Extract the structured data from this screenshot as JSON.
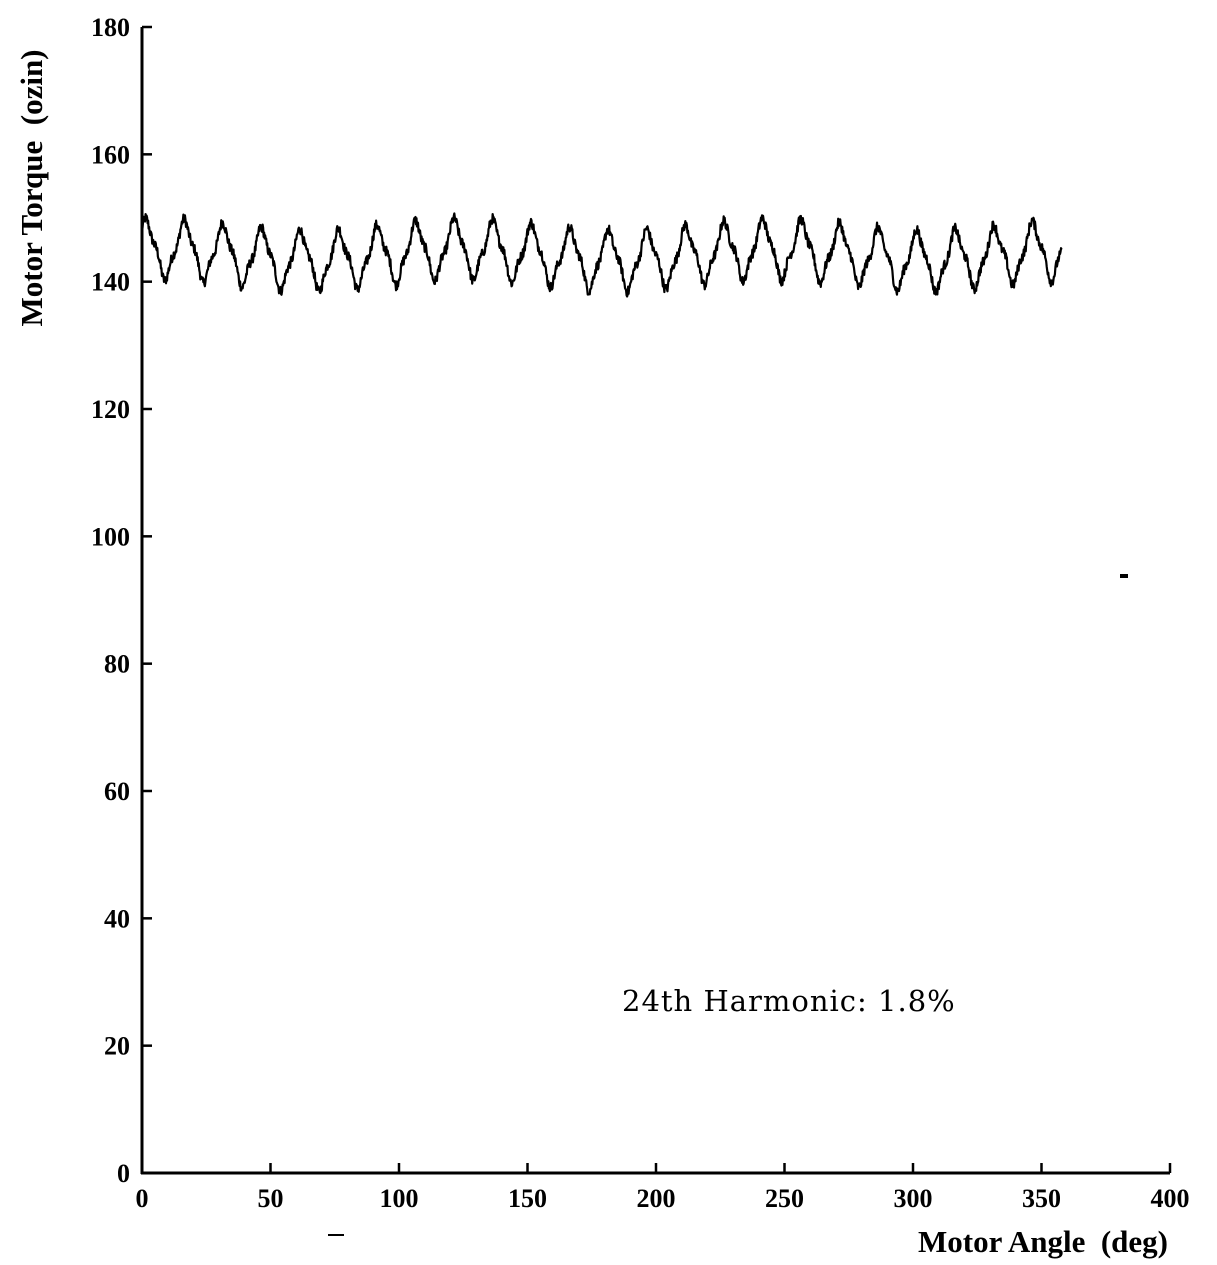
{
  "chart_data": {
    "type": "line",
    "title": "",
    "xlabel": "Motor Angle  (deg)",
    "ylabel": "Motor Torque  (ozin)",
    "xlim": [
      0,
      400
    ],
    "ylim": [
      0,
      180
    ],
    "xticks": [
      0,
      50,
      100,
      150,
      200,
      250,
      300,
      350,
      400
    ],
    "yticks": [
      0,
      20,
      40,
      60,
      80,
      100,
      120,
      140,
      160,
      180
    ],
    "grid": false,
    "annotation": "24th Harmonic: 1.8%",
    "series": [
      {
        "mean": 144.2,
        "x_start": 0,
        "x_end": 358,
        "harmonic_order": 24,
        "harmonic_amplitude_percent": 1.8,
        "x_sample": [
          0,
          7.5,
          15,
          22.5,
          30,
          37.5,
          45,
          52.5,
          60,
          67.5,
          75,
          82.5,
          90,
          97.5,
          105,
          112.5,
          120,
          127.5,
          135,
          142.5,
          150,
          157.5,
          165,
          172.5,
          180,
          187.5,
          195,
          202.5,
          210,
          217.5,
          225,
          232.5,
          240,
          247.5,
          255,
          262.5,
          270,
          277.5,
          285,
          292.5,
          300,
          307.5,
          315,
          322.5,
          330,
          337.5,
          345,
          352.5,
          358
        ],
        "y_sample": [
          146.5,
          141.5,
          147.5,
          141.8,
          146.5,
          141.5,
          148,
          141.8,
          147,
          141,
          147.5,
          141.5,
          147.5,
          141,
          148,
          141.5,
          146.5,
          141.5,
          146.5,
          140.5,
          146,
          141.5,
          147,
          141.5,
          147,
          141.5,
          146.5,
          141,
          146.5,
          141.5,
          146.5,
          140.5,
          146.5,
          141.5,
          146.5,
          141.5,
          146,
          141,
          146.5,
          141,
          146.5,
          141,
          146.5,
          140.5,
          146,
          141.5,
          147,
          141.5,
          146
        ]
      }
    ]
  }
}
